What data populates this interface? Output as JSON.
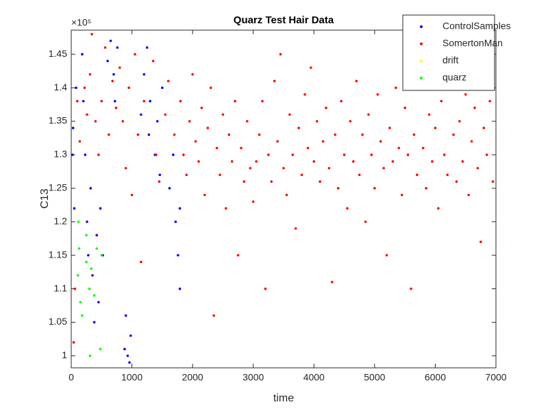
{
  "chart_data": {
    "type": "scatter",
    "title": "Quarz Test Hair Data",
    "x_label": "time",
    "y_label": "C13",
    "y_exponent": "×10⁵",
    "xlim": [
      0,
      7000
    ],
    "xticks": [
      0,
      1000,
      2000,
      3000,
      4000,
      5000,
      6000,
      7000
    ],
    "ylim": [
      0.982,
      1.486
    ],
    "yticks": [
      1,
      1.05,
      1.1,
      1.15,
      1.2,
      1.25,
      1.3,
      1.35,
      1.4,
      1.45
    ],
    "legend": "upper right",
    "series": [
      {
        "name": "ControlSamples",
        "color": "#0000ff",
        "x": [
          30,
          50,
          80,
          20,
          180,
          200,
          230,
          260,
          280,
          320,
          350,
          380,
          420,
          450,
          480,
          520,
          600,
          650,
          700,
          720,
          760,
          880,
          900,
          930,
          960,
          980,
          1150,
          1200,
          1250,
          1280,
          1300,
          1380,
          1420,
          1460,
          1500,
          1620,
          1680,
          1720,
          1760,
          1790,
          1790
        ],
        "values": [
          1.34,
          1.22,
          1.4,
          1.3,
          1.45,
          1.38,
          1.3,
          1.2,
          1.15,
          1.25,
          1.12,
          1.05,
          1.18,
          1.08,
          1.22,
          1.15,
          1.44,
          1.47,
          1.42,
          1.38,
          1.46,
          1.01,
          1.06,
          1.0,
          0.99,
          1.03,
          1.36,
          1.42,
          1.46,
          1.33,
          1.38,
          1.3,
          1.35,
          1.27,
          1.4,
          1.25,
          1.3,
          1.2,
          1.15,
          1.1,
          1.22
        ]
      },
      {
        "name": "SomertonMan",
        "color": "#ff0000",
        "x": [
          40,
          60,
          100,
          140,
          220,
          260,
          310,
          340,
          400,
          450,
          500,
          560,
          620,
          680,
          740,
          800,
          850,
          900,
          950,
          1000,
          1050,
          1100,
          1150,
          1200,
          1350,
          1400,
          1450,
          1550,
          1600,
          1700,
          1800,
          1850,
          1900,
          1950,
          2000,
          2050,
          2100,
          2150,
          2200,
          2250,
          2300,
          2350,
          2400,
          2450,
          2500,
          2550,
          2600,
          2650,
          2700,
          2750,
          2800,
          2850,
          2900,
          2950,
          3000,
          3050,
          3100,
          3150,
          3200,
          3250,
          3300,
          3350,
          3400,
          3450,
          3500,
          3550,
          3600,
          3650,
          3700,
          3750,
          3800,
          3850,
          3900,
          3950,
          4000,
          4050,
          4100,
          4150,
          4200,
          4250,
          4300,
          4350,
          4400,
          4450,
          4500,
          4550,
          4600,
          4650,
          4700,
          4750,
          4800,
          4850,
          4900,
          4950,
          5000,
          5050,
          5100,
          5150,
          5200,
          5250,
          5300,
          5350,
          5400,
          5450,
          5500,
          5550,
          5600,
          5650,
          5700,
          5750,
          5800,
          5850,
          5900,
          5950,
          6000,
          6050,
          6100,
          6150,
          6200,
          6250,
          6300,
          6350,
          6400,
          6450,
          6500,
          6550,
          6600,
          6650,
          6700,
          6750,
          6800,
          6850,
          6900,
          6950
        ],
        "values": [
          1.02,
          1.1,
          1.38,
          1.32,
          1.4,
          1.36,
          1.42,
          1.48,
          1.35,
          1.3,
          1.38,
          1.46,
          1.33,
          1.41,
          1.37,
          1.43,
          1.35,
          1.28,
          1.4,
          1.24,
          1.45,
          1.33,
          1.14,
          1.38,
          1.44,
          1.3,
          1.26,
          1.36,
          1.41,
          1.33,
          1.38,
          1.3,
          1.27,
          1.35,
          1.42,
          1.32,
          1.29,
          1.37,
          1.24,
          1.34,
          1.4,
          1.06,
          1.31,
          1.27,
          1.36,
          1.22,
          1.33,
          1.29,
          1.38,
          1.15,
          1.31,
          1.26,
          1.35,
          1.28,
          1.23,
          1.29,
          1.33,
          1.38,
          1.1,
          1.3,
          1.26,
          1.41,
          1.32,
          1.45,
          1.28,
          1.24,
          1.36,
          1.3,
          1.19,
          1.34,
          1.27,
          1.39,
          1.31,
          1.43,
          1.29,
          1.35,
          1.26,
          1.32,
          1.37,
          1.28,
          1.11,
          1.33,
          1.25,
          1.38,
          1.3,
          1.22,
          1.35,
          1.29,
          1.41,
          1.27,
          1.33,
          1.2,
          1.36,
          1.3,
          1.25,
          1.39,
          1.32,
          1.28,
          1.15,
          1.34,
          1.29,
          1.4,
          1.31,
          1.24,
          1.37,
          1.3,
          1.1,
          1.33,
          1.27,
          1.42,
          1.31,
          1.25,
          1.36,
          1.29,
          1.34,
          1.22,
          1.38,
          1.3,
          1.27,
          1.41,
          1.33,
          1.26,
          1.35,
          1.29,
          1.39,
          1.24,
          1.32,
          1.37,
          1.28,
          1.17,
          1.34,
          1.3,
          1.38,
          1.26
        ]
      },
      {
        "name": "drift",
        "color": "#ffff00",
        "x": [],
        "values": []
      },
      {
        "name": "quarz",
        "color": "#00ff00",
        "x": [
          110,
          130,
          150,
          180,
          250,
          300,
          330,
          380,
          420,
          500,
          480,
          310,
          120,
          250
        ],
        "values": [
          1.12,
          1.16,
          1.08,
          1.06,
          1.14,
          1.1,
          1.13,
          1.09,
          1.16,
          1.15,
          1.01,
          1.0,
          1.2,
          1.18
        ]
      }
    ]
  }
}
